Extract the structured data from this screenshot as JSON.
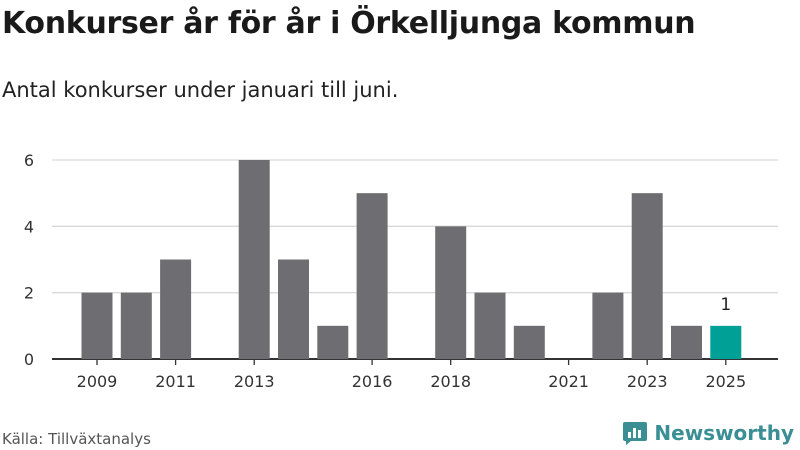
{
  "title": "Konkurser år för år i Örkelljunga kommun",
  "subtitle": "Antal konkurser under januari till juni.",
  "source": "Källa: Tillväxtanalys",
  "brand": "Newsworthy",
  "colors": {
    "bar": "#6e6d71",
    "highlight": "#00a096",
    "grid": "#d9d9d9",
    "axis": "#333333",
    "brand": "#3a8f94"
  },
  "chart_data": {
    "type": "bar",
    "categories": [
      "2009",
      "2010",
      "2011",
      "2012",
      "2013",
      "2014",
      "2015",
      "2016",
      "2017",
      "2018",
      "2019",
      "2020",
      "2021",
      "2022",
      "2023",
      "2024",
      "2025"
    ],
    "values": [
      2,
      2,
      3,
      0,
      6,
      3,
      1,
      5,
      0,
      4,
      2,
      1,
      0,
      2,
      5,
      1,
      1
    ],
    "x_tick_labels": [
      "2009",
      "2011",
      "2013",
      "2016",
      "2018",
      "2021",
      "2023",
      "2025"
    ],
    "y_ticks": [
      0,
      2,
      4,
      6
    ],
    "ylim": [
      0,
      6
    ],
    "highlight_category": "2025",
    "data_labels": [
      {
        "category": "2025",
        "text": "1"
      }
    ],
    "grid": true
  }
}
